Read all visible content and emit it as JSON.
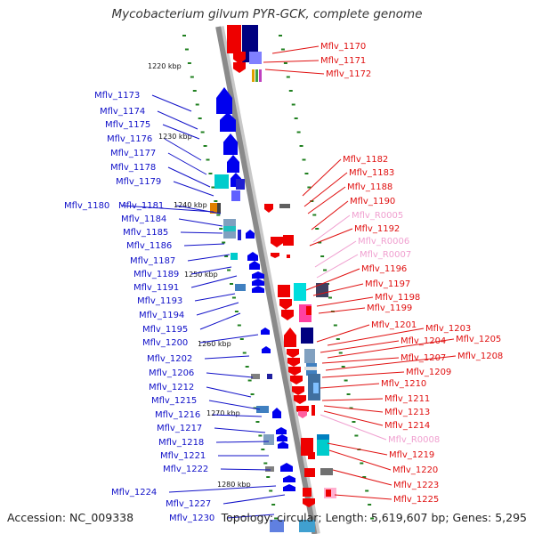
{
  "title": "Mycobacterium gilvum PYR-GCK, complete genome",
  "footer": {
    "accession": "Accession: NC_009338",
    "topology": "Topology: circular; Length: 5,619,607 bp; Genes: 5,295"
  },
  "colors": {
    "left_label": "#1010c8",
    "right_label": "#e01010",
    "rna_label": "#f0a0d0",
    "backbone": "#8a8a8a",
    "tick": "#208020"
  },
  "kbp_markers": [
    "1220 kbp",
    "1230 kbp",
    "1240 kbp",
    "1250 kbp",
    "1260 kbp",
    "1270 kbp",
    "1280 kbp"
  ],
  "left_labels": [
    "Mflv_1173",
    "Mflv_1174",
    "Mflv_1175",
    "Mflv_1176",
    "Mflv_1177",
    "Mflv_1178",
    "Mflv_1179",
    "Mflv_1180",
    "Mflv_1181",
    "Mflv_1184",
    "Mflv_1185",
    "Mflv_1186",
    "Mflv_1187",
    "Mflv_1189",
    "Mflv_1191",
    "Mflv_1193",
    "Mflv_1194",
    "Mflv_1195",
    "Mflv_1200",
    "Mflv_1202",
    "Mflv_1206",
    "Mflv_1212",
    "Mflv_1215",
    "Mflv_1216",
    "Mflv_1217",
    "Mflv_1218",
    "Mflv_1221",
    "Mflv_1222",
    "Mflv_1224",
    "Mflv_1227",
    "Mflv_1230"
  ],
  "right_labels": [
    "Mflv_1170",
    "Mflv_1171",
    "Mflv_1172",
    "Mflv_1182",
    "Mflv_1183",
    "Mflv_1188",
    "Mflv_1190",
    "Mflv_R0005",
    "Mflv_1192",
    "Mflv_R0006",
    "Mflv_R0007",
    "Mflv_1196",
    "Mflv_1197",
    "Mflv_1198",
    "Mflv_1199",
    "Mflv_1201",
    "Mflv_1203",
    "Mflv_1204",
    "Mflv_1205",
    "Mflv_1207",
    "Mflv_1208",
    "Mflv_1209",
    "Mflv_1210",
    "Mflv_1211",
    "Mflv_1213",
    "Mflv_1214",
    "Mflv_R0008",
    "Mflv_1219",
    "Mflv_1220",
    "Mflv_1223",
    "Mflv_1225"
  ]
}
